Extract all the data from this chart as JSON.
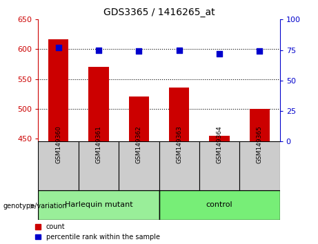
{
  "title": "GDS3365 / 1416265_at",
  "samples": [
    "GSM149360",
    "GSM149361",
    "GSM149362",
    "GSM149363",
    "GSM149364",
    "GSM149365"
  ],
  "bar_values": [
    617,
    571,
    521,
    536,
    455,
    500
  ],
  "dot_values": [
    77,
    75,
    74,
    75,
    72,
    74
  ],
  "ylim_left": [
    445,
    650
  ],
  "ylim_right": [
    0,
    100
  ],
  "yticks_left": [
    450,
    500,
    550,
    600,
    650
  ],
  "yticks_right": [
    0,
    25,
    50,
    75,
    100
  ],
  "bar_color": "#cc0000",
  "dot_color": "#0000cc",
  "groups": [
    {
      "label": "Harlequin mutant",
      "indices": [
        0,
        1,
        2
      ],
      "color": "#99ee99"
    },
    {
      "label": "control",
      "indices": [
        3,
        4,
        5
      ],
      "color": "#77ee77"
    }
  ],
  "group_label": "genotype/variation",
  "legend_count": "count",
  "legend_percentile": "percentile rank within the sample",
  "sample_box_color": "#cccccc",
  "bar_width": 0.5,
  "dot_size": 30,
  "hline_ticks": [
    500,
    550,
    600
  ]
}
